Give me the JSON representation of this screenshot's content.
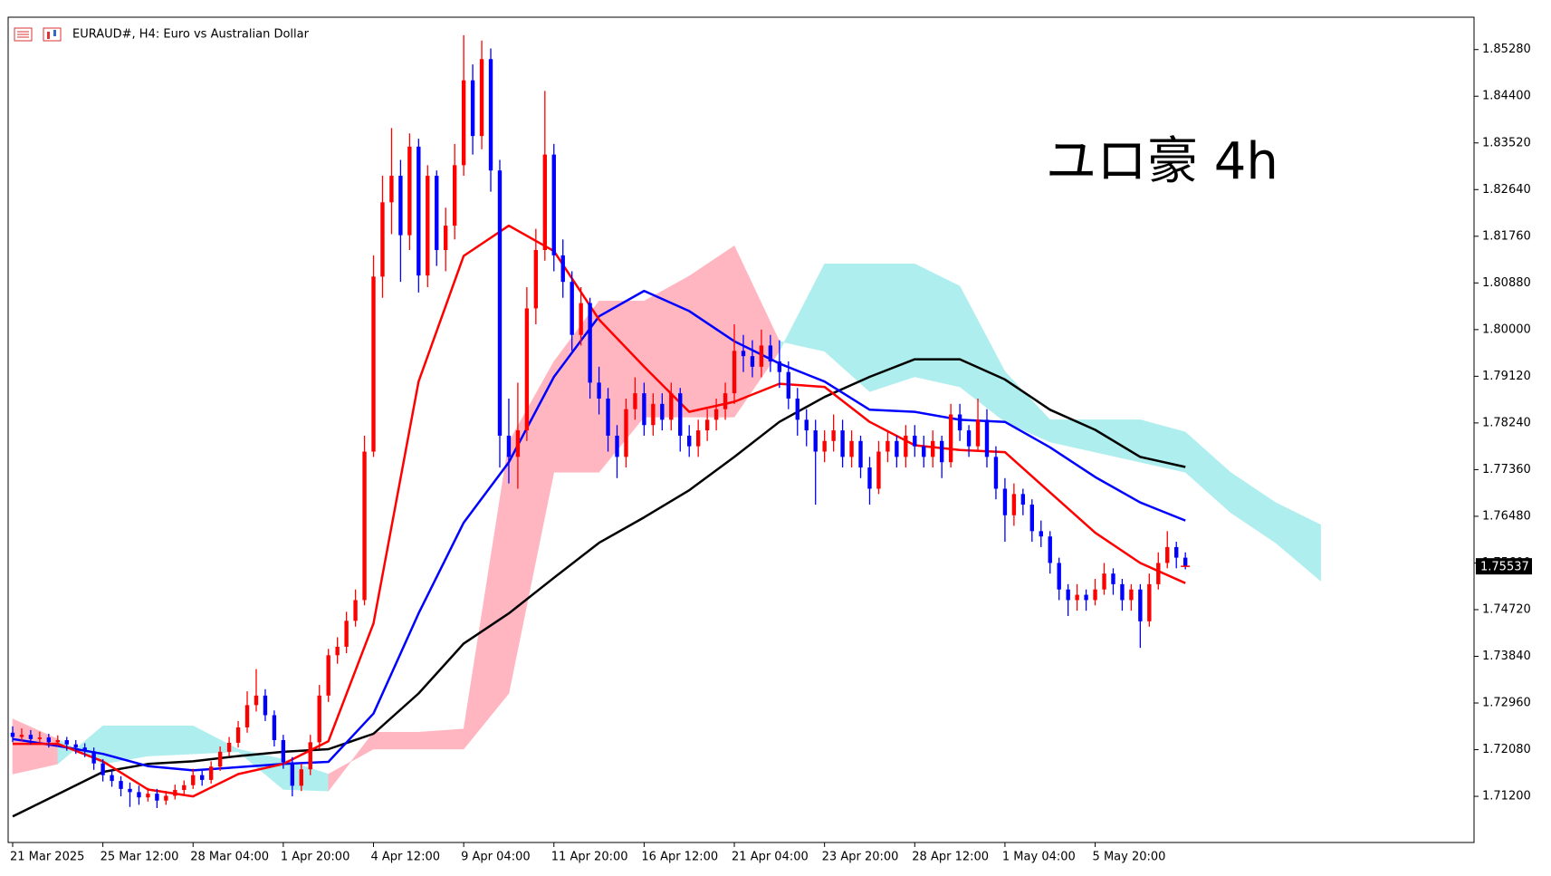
{
  "chart_data": {
    "type": "candlestick",
    "title": "EURAUD#, H4:  Euro vs Australian Dollar",
    "annotation": "ユロ豪 4h",
    "up_color": "#ff0000",
    "down_color": "#0000ff",
    "ohlc": [
      [
        1.724,
        1.7252,
        1.7222,
        1.7232
      ],
      [
        1.7232,
        1.7248,
        1.7224,
        1.7236
      ],
      [
        1.7236,
        1.7245,
        1.7218,
        1.7228
      ],
      [
        1.7228,
        1.7242,
        1.722,
        1.7231
      ],
      [
        1.7231,
        1.7238,
        1.7212,
        1.7222
      ],
      [
        1.7222,
        1.7235,
        1.7215,
        1.7226
      ],
      [
        1.7226,
        1.7232,
        1.7206,
        1.7218
      ],
      [
        1.7218,
        1.7226,
        1.72,
        1.7212
      ],
      [
        1.7212,
        1.722,
        1.7194,
        1.7205
      ],
      [
        1.7205,
        1.7212,
        1.717,
        1.7182
      ],
      [
        1.7182,
        1.719,
        1.7148,
        1.716
      ],
      [
        1.716,
        1.717,
        1.7138,
        1.7149
      ],
      [
        1.7149,
        1.7158,
        1.712,
        1.7134
      ],
      [
        1.7134,
        1.7146,
        1.71,
        1.7128
      ],
      [
        1.7128,
        1.714,
        1.7104,
        1.7118
      ],
      [
        1.7118,
        1.7136,
        1.711,
        1.7125
      ],
      [
        1.7125,
        1.7134,
        1.7098,
        1.7112
      ],
      [
        1.7112,
        1.713,
        1.7104,
        1.7121
      ],
      [
        1.7121,
        1.7142,
        1.7114,
        1.7132
      ],
      [
        1.7132,
        1.715,
        1.7124,
        1.7141
      ],
      [
        1.7141,
        1.7172,
        1.7134,
        1.716
      ],
      [
        1.716,
        1.7168,
        1.714,
        1.7151
      ],
      [
        1.7151,
        1.7186,
        1.7144,
        1.7176
      ],
      [
        1.7176,
        1.7214,
        1.7168,
        1.7204
      ],
      [
        1.7204,
        1.7232,
        1.7196,
        1.7221
      ],
      [
        1.7221,
        1.7262,
        1.7212,
        1.725
      ],
      [
        1.725,
        1.7318,
        1.724,
        1.7292
      ],
      [
        1.7292,
        1.736,
        1.728,
        1.731
      ],
      [
        1.731,
        1.7322,
        1.7262,
        1.7273
      ],
      [
        1.7273,
        1.7282,
        1.7214,
        1.7226
      ],
      [
        1.7226,
        1.7236,
        1.7172,
        1.7184
      ],
      [
        1.7184,
        1.7194,
        1.712,
        1.714
      ],
      [
        1.714,
        1.7182,
        1.713,
        1.7171
      ],
      [
        1.7171,
        1.7236,
        1.716,
        1.7222
      ],
      [
        1.7222,
        1.733,
        1.721,
        1.731
      ],
      [
        1.731,
        1.7398,
        1.7298,
        1.7386
      ],
      [
        1.7386,
        1.742,
        1.737,
        1.7402
      ],
      [
        1.7402,
        1.7468,
        1.739,
        1.7451
      ],
      [
        1.7451,
        1.751,
        1.744,
        1.749
      ],
      [
        1.749,
        1.78,
        1.748,
        1.777
      ],
      [
        1.777,
        1.814,
        1.776,
        1.81
      ],
      [
        1.81,
        1.829,
        1.806,
        1.824
      ],
      [
        1.824,
        1.838,
        1.818,
        1.829
      ],
      [
        1.829,
        1.832,
        1.809,
        1.8178
      ],
      [
        1.8178,
        1.837,
        1.815,
        1.8345
      ],
      [
        1.8345,
        1.836,
        1.807,
        1.8102
      ],
      [
        1.8102,
        1.831,
        1.808,
        1.829
      ],
      [
        1.829,
        1.83,
        1.812,
        1.815
      ],
      [
        1.815,
        1.823,
        1.811,
        1.8196
      ],
      [
        1.8196,
        1.835,
        1.817,
        1.831
      ],
      [
        1.831,
        1.8555,
        1.829,
        1.847
      ],
      [
        1.847,
        1.85,
        1.833,
        1.8365
      ],
      [
        1.8365,
        1.8545,
        1.834,
        1.851
      ],
      [
        1.851,
        1.853,
        1.826,
        1.83
      ],
      [
        1.83,
        1.832,
        1.774,
        1.78
      ],
      [
        1.78,
        1.787,
        1.771,
        1.776
      ],
      [
        1.776,
        1.79,
        1.77,
        1.781
      ],
      [
        1.781,
        1.808,
        1.779,
        1.804
      ],
      [
        1.804,
        1.819,
        1.801,
        1.815
      ],
      [
        1.815,
        1.845,
        1.813,
        1.833
      ],
      [
        1.833,
        1.835,
        1.811,
        1.814
      ],
      [
        1.814,
        1.817,
        1.806,
        1.809
      ],
      [
        1.809,
        1.811,
        1.796,
        1.799
      ],
      [
        1.799,
        1.808,
        1.797,
        1.805
      ],
      [
        1.805,
        1.806,
        1.787,
        1.79
      ],
      [
        1.79,
        1.793,
        1.784,
        1.787
      ],
      [
        1.787,
        1.789,
        1.777,
        1.78
      ],
      [
        1.78,
        1.782,
        1.772,
        1.776
      ],
      [
        1.776,
        1.787,
        1.774,
        1.785
      ],
      [
        1.785,
        1.791,
        1.783,
        1.788
      ],
      [
        1.788,
        1.79,
        1.78,
        1.782
      ],
      [
        1.782,
        1.788,
        1.78,
        1.786
      ],
      [
        1.786,
        1.788,
        1.781,
        1.783
      ],
      [
        1.783,
        1.79,
        1.781,
        1.788
      ],
      [
        1.788,
        1.789,
        1.777,
        1.78
      ],
      [
        1.78,
        1.782,
        1.776,
        1.778
      ],
      [
        1.778,
        1.783,
        1.776,
        1.781
      ],
      [
        1.781,
        1.785,
        1.779,
        1.783
      ],
      [
        1.783,
        1.787,
        1.781,
        1.785
      ],
      [
        1.785,
        1.79,
        1.783,
        1.788
      ],
      [
        1.788,
        1.801,
        1.786,
        1.796
      ],
      [
        1.796,
        1.799,
        1.792,
        1.795
      ],
      [
        1.795,
        1.798,
        1.791,
        1.793
      ],
      [
        1.793,
        1.8,
        1.791,
        1.797
      ],
      [
        1.797,
        1.799,
        1.792,
        1.794
      ],
      [
        1.794,
        1.798,
        1.789,
        1.792
      ],
      [
        1.792,
        1.794,
        1.785,
        1.787
      ],
      [
        1.787,
        1.789,
        1.78,
        1.783
      ],
      [
        1.783,
        1.785,
        1.778,
        1.781
      ],
      [
        1.781,
        1.783,
        1.767,
        1.777
      ],
      [
        1.777,
        1.781,
        1.775,
        1.779
      ],
      [
        1.779,
        1.784,
        1.777,
        1.781
      ],
      [
        1.781,
        1.783,
        1.774,
        1.776
      ],
      [
        1.776,
        1.781,
        1.774,
        1.779
      ],
      [
        1.779,
        1.78,
        1.772,
        1.774
      ],
      [
        1.774,
        1.776,
        1.767,
        1.77
      ],
      [
        1.77,
        1.779,
        1.769,
        1.777
      ],
      [
        1.777,
        1.781,
        1.775,
        1.779
      ],
      [
        1.779,
        1.78,
        1.774,
        1.776
      ],
      [
        1.776,
        1.782,
        1.774,
        1.78
      ],
      [
        1.78,
        1.782,
        1.776,
        1.778
      ],
      [
        1.778,
        1.78,
        1.774,
        1.776
      ],
      [
        1.776,
        1.781,
        1.774,
        1.779
      ],
      [
        1.779,
        1.78,
        1.772,
        1.775
      ],
      [
        1.775,
        1.786,
        1.774,
        1.784
      ],
      [
        1.784,
        1.786,
        1.779,
        1.781
      ],
      [
        1.781,
        1.782,
        1.776,
        1.778
      ],
      [
        1.778,
        1.787,
        1.777,
        1.783
      ],
      [
        1.783,
        1.785,
        1.774,
        1.776
      ],
      [
        1.776,
        1.778,
        1.768,
        1.77
      ],
      [
        1.77,
        1.772,
        1.76,
        1.765
      ],
      [
        1.765,
        1.771,
        1.763,
        1.769
      ],
      [
        1.769,
        1.77,
        1.765,
        1.767
      ],
      [
        1.767,
        1.768,
        1.76,
        1.762
      ],
      [
        1.762,
        1.764,
        1.759,
        1.761
      ],
      [
        1.761,
        1.762,
        1.754,
        1.756
      ],
      [
        1.756,
        1.757,
        1.749,
        1.751
      ],
      [
        1.751,
        1.752,
        1.746,
        1.749
      ],
      [
        1.749,
        1.752,
        1.747,
        1.75
      ],
      [
        1.75,
        1.751,
        1.747,
        1.749
      ],
      [
        1.749,
        1.753,
        1.748,
        1.751
      ],
      [
        1.751,
        1.756,
        1.75,
        1.754
      ],
      [
        1.754,
        1.755,
        1.75,
        1.752
      ],
      [
        1.752,
        1.753,
        1.747,
        1.749
      ],
      [
        1.749,
        1.752,
        1.747,
        1.751
      ],
      [
        1.751,
        1.752,
        1.74,
        1.745
      ],
      [
        1.745,
        1.754,
        1.744,
        1.752
      ],
      [
        1.752,
        1.758,
        1.751,
        1.756
      ],
      [
        1.756,
        1.762,
        1.755,
        1.759
      ],
      [
        1.759,
        1.76,
        1.755,
        1.757
      ],
      [
        1.757,
        1.758,
        1.7548,
        1.75537
      ]
    ],
    "cloud": {
      "x": [
        0,
        5,
        10,
        15,
        20,
        25,
        30,
        35,
        40,
        45,
        50,
        55,
        60,
        65,
        70,
        75,
        80,
        85,
        90,
        95,
        100,
        105,
        110,
        115,
        120,
        125,
        130,
        135,
        140,
        145
      ],
      "span_a": [
        1.7266,
        1.7228,
        1.7181,
        1.7196,
        1.72,
        1.7204,
        1.7133,
        1.713,
        1.7241,
        1.7241,
        1.7247,
        1.7788,
        1.794,
        1.8054,
        1.8054,
        1.8101,
        1.8158,
        1.7978,
        1.7959,
        1.7883,
        1.7911,
        1.7892,
        1.7826,
        1.7788,
        1.7769,
        1.775,
        1.7731,
        1.7655,
        1.7598,
        1.7526
      ],
      "span_b": [
        1.7162,
        1.7181,
        1.7253,
        1.7253,
        1.7253,
        1.7209,
        1.719,
        1.7162,
        1.7209,
        1.7209,
        1.7209,
        1.7314,
        1.7731,
        1.7731,
        1.7835,
        1.7835,
        1.7835,
        1.7959,
        1.8124,
        1.8124,
        1.8124,
        1.8082,
        1.7921,
        1.783,
        1.783,
        1.783,
        1.7807,
        1.7731,
        1.7674,
        1.7632
      ],
      "up_color": "#ffb6c1",
      "down_color": "#afeeee"
    },
    "lines": [
      {
        "color": "#000000",
        "x": [
          0,
          5,
          10,
          15,
          20,
          25,
          30,
          35,
          40,
          45,
          50,
          55,
          60,
          65,
          70,
          75,
          80,
          85,
          90,
          95,
          100,
          105,
          110,
          115,
          120,
          125,
          130
        ],
        "values": [
          1.7082,
          1.7124,
          1.7166,
          1.7181,
          1.7186,
          1.7196,
          1.7204,
          1.7209,
          1.7238,
          1.7314,
          1.7408,
          1.7465,
          1.7532,
          1.7598,
          1.7646,
          1.7697,
          1.776,
          1.7826,
          1.7873,
          1.7911,
          1.7944,
          1.7944,
          1.7906,
          1.7849,
          1.7811,
          1.776,
          1.7741
        ]
      },
      {
        "color": "#0000ff",
        "x": [
          0,
          5,
          10,
          15,
          20,
          25,
          30,
          35,
          40,
          45,
          50,
          55,
          60,
          65,
          70,
          75,
          80,
          85,
          90,
          95,
          100,
          105,
          110,
          115,
          120,
          125,
          130
        ],
        "values": [
          1.7228,
          1.7215,
          1.72,
          1.7177,
          1.7169,
          1.7175,
          1.7181,
          1.7185,
          1.7276,
          1.7465,
          1.7636,
          1.775,
          1.7911,
          1.8025,
          1.8073,
          1.8035,
          1.7978,
          1.7936,
          1.7902,
          1.7849,
          1.7845,
          1.783,
          1.7826,
          1.7778,
          1.7722,
          1.7674,
          1.764
        ]
      },
      {
        "color": "#ff0000",
        "x": [
          0,
          5,
          10,
          15,
          20,
          25,
          30,
          35,
          40,
          45,
          50,
          55,
          60,
          65,
          70,
          75,
          80,
          85,
          90,
          95,
          100,
          105,
          110,
          115,
          120,
          125,
          130
        ],
        "values": [
          1.7219,
          1.7219,
          1.7186,
          1.7133,
          1.712,
          1.7162,
          1.7181,
          1.7224,
          1.7446,
          1.7902,
          1.8139,
          1.8196,
          1.8148,
          1.8019,
          1.793,
          1.7845,
          1.7864,
          1.7898,
          1.7892,
          1.7826,
          1.7782,
          1.7773,
          1.7769,
          1.7693,
          1.7617,
          1.756,
          1.7522
        ]
      }
    ],
    "xlim": [
      -0.5,
      162
    ],
    "xticks": [
      {
        "value": 0,
        "label": "21 Mar 2025"
      },
      {
        "value": 10,
        "label": "25 Mar 12:00"
      },
      {
        "value": 20,
        "label": "28 Mar 04:00"
      },
      {
        "value": 30,
        "label": "1 Apr 20:00"
      },
      {
        "value": 40,
        "label": "4 Apr 12:00"
      },
      {
        "value": 50,
        "label": "9 Apr 04:00"
      },
      {
        "value": 60,
        "label": "11 Apr 20:00"
      },
      {
        "value": 70,
        "label": "16 Apr 12:00"
      },
      {
        "value": 80,
        "label": "21 Apr 04:00"
      },
      {
        "value": 90,
        "label": "23 Apr 20:00"
      },
      {
        "value": 100,
        "label": "28 Apr 12:00"
      },
      {
        "value": 110,
        "label": "1 May 04:00"
      },
      {
        "value": 120,
        "label": "5 May 20:00"
      }
    ],
    "ylim": [
      1.7033,
      1.8589
    ],
    "yticks": [
      {
        "value": 1.8528,
        "label": "1.85280"
      },
      {
        "value": 1.844,
        "label": "1.84400"
      },
      {
        "value": 1.8352,
        "label": "1.83520"
      },
      {
        "value": 1.8264,
        "label": "1.82640"
      },
      {
        "value": 1.8176,
        "label": "1.81760"
      },
      {
        "value": 1.8088,
        "label": "1.80880"
      },
      {
        "value": 1.8,
        "label": "1.80000"
      },
      {
        "value": 1.7912,
        "label": "1.79120"
      },
      {
        "value": 1.7824,
        "label": "1.78240"
      },
      {
        "value": 1.7736,
        "label": "1.77360"
      },
      {
        "value": 1.7648,
        "label": "1.76480"
      },
      {
        "value": 1.756,
        "label": "1.75600"
      },
      {
        "value": 1.7472,
        "label": "1.74720"
      },
      {
        "value": 1.7384,
        "label": "1.73840"
      },
      {
        "value": 1.7296,
        "label": "1.72960"
      },
      {
        "value": 1.7208,
        "label": "1.72080"
      },
      {
        "value": 1.712,
        "label": "1.71200"
      }
    ],
    "grid": false
  }
}
